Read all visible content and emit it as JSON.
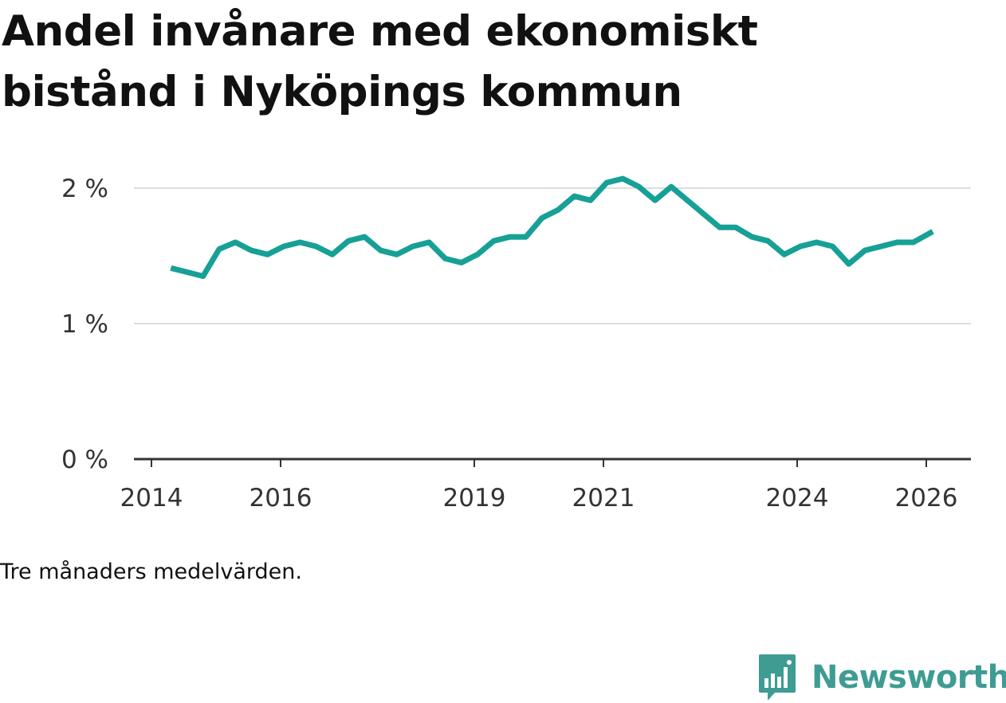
{
  "title": "Andel invånare med ekonomiskt bistånd i Nyköpings kommun",
  "caption": "Tre månaders medelvärden.",
  "brand": {
    "name": "Newsworthy",
    "color": "#3e9c92",
    "icon": "newsworthy-logo-icon"
  },
  "colors": {
    "line": "#16a096",
    "grid": "#dddddd",
    "axis": "#333333"
  },
  "chart_data": {
    "type": "line",
    "title": "Andel invånare med ekonomiskt bistånd i Nyköpings kommun",
    "xlabel": "",
    "ylabel": "",
    "ylim": [
      0,
      2.2
    ],
    "y_ticks": [
      {
        "value": 0,
        "label": "0 %"
      },
      {
        "value": 1,
        "label": "1 %"
      },
      {
        "value": 2,
        "label": "2 %"
      }
    ],
    "x_ticks": [
      {
        "value": 2014,
        "label": "2014"
      },
      {
        "value": 2016,
        "label": "2016"
      },
      {
        "value": 2019,
        "label": "2019"
      },
      {
        "value": 2021,
        "label": "2021"
      },
      {
        "value": 2024,
        "label": "2024"
      },
      {
        "value": 2026,
        "label": "2026"
      }
    ],
    "xlim": [
      2013.75,
      2026.7
    ],
    "grid": true,
    "series": [
      {
        "name": "Andel invånare med ekonomiskt bistånd",
        "x": [
          2014.3,
          2014.55,
          2014.8,
          2015.05,
          2015.3,
          2015.55,
          2015.8,
          2016.05,
          2016.3,
          2016.55,
          2016.8,
          2017.05,
          2017.3,
          2017.55,
          2017.8,
          2018.05,
          2018.3,
          2018.55,
          2018.8,
          2019.05,
          2019.3,
          2019.55,
          2019.8,
          2020.05,
          2020.3,
          2020.55,
          2020.8,
          2021.05,
          2021.3,
          2021.55,
          2021.8,
          2022.05,
          2022.3,
          2022.55,
          2022.8,
          2023.05,
          2023.3,
          2023.55,
          2023.8,
          2024.05,
          2024.3,
          2024.55,
          2024.8,
          2025.05,
          2025.3,
          2025.55,
          2025.8,
          2026.1
        ],
        "values": [
          1.41,
          1.38,
          1.35,
          1.55,
          1.6,
          1.54,
          1.51,
          1.57,
          1.6,
          1.57,
          1.51,
          1.61,
          1.64,
          1.54,
          1.51,
          1.57,
          1.6,
          1.48,
          1.45,
          1.51,
          1.61,
          1.64,
          1.64,
          1.78,
          1.84,
          1.94,
          1.91,
          2.04,
          2.07,
          2.01,
          1.91,
          2.01,
          1.91,
          1.81,
          1.71,
          1.71,
          1.64,
          1.61,
          1.51,
          1.57,
          1.6,
          1.57,
          1.44,
          1.54,
          1.57,
          1.6,
          1.6,
          1.68
        ]
      }
    ]
  }
}
